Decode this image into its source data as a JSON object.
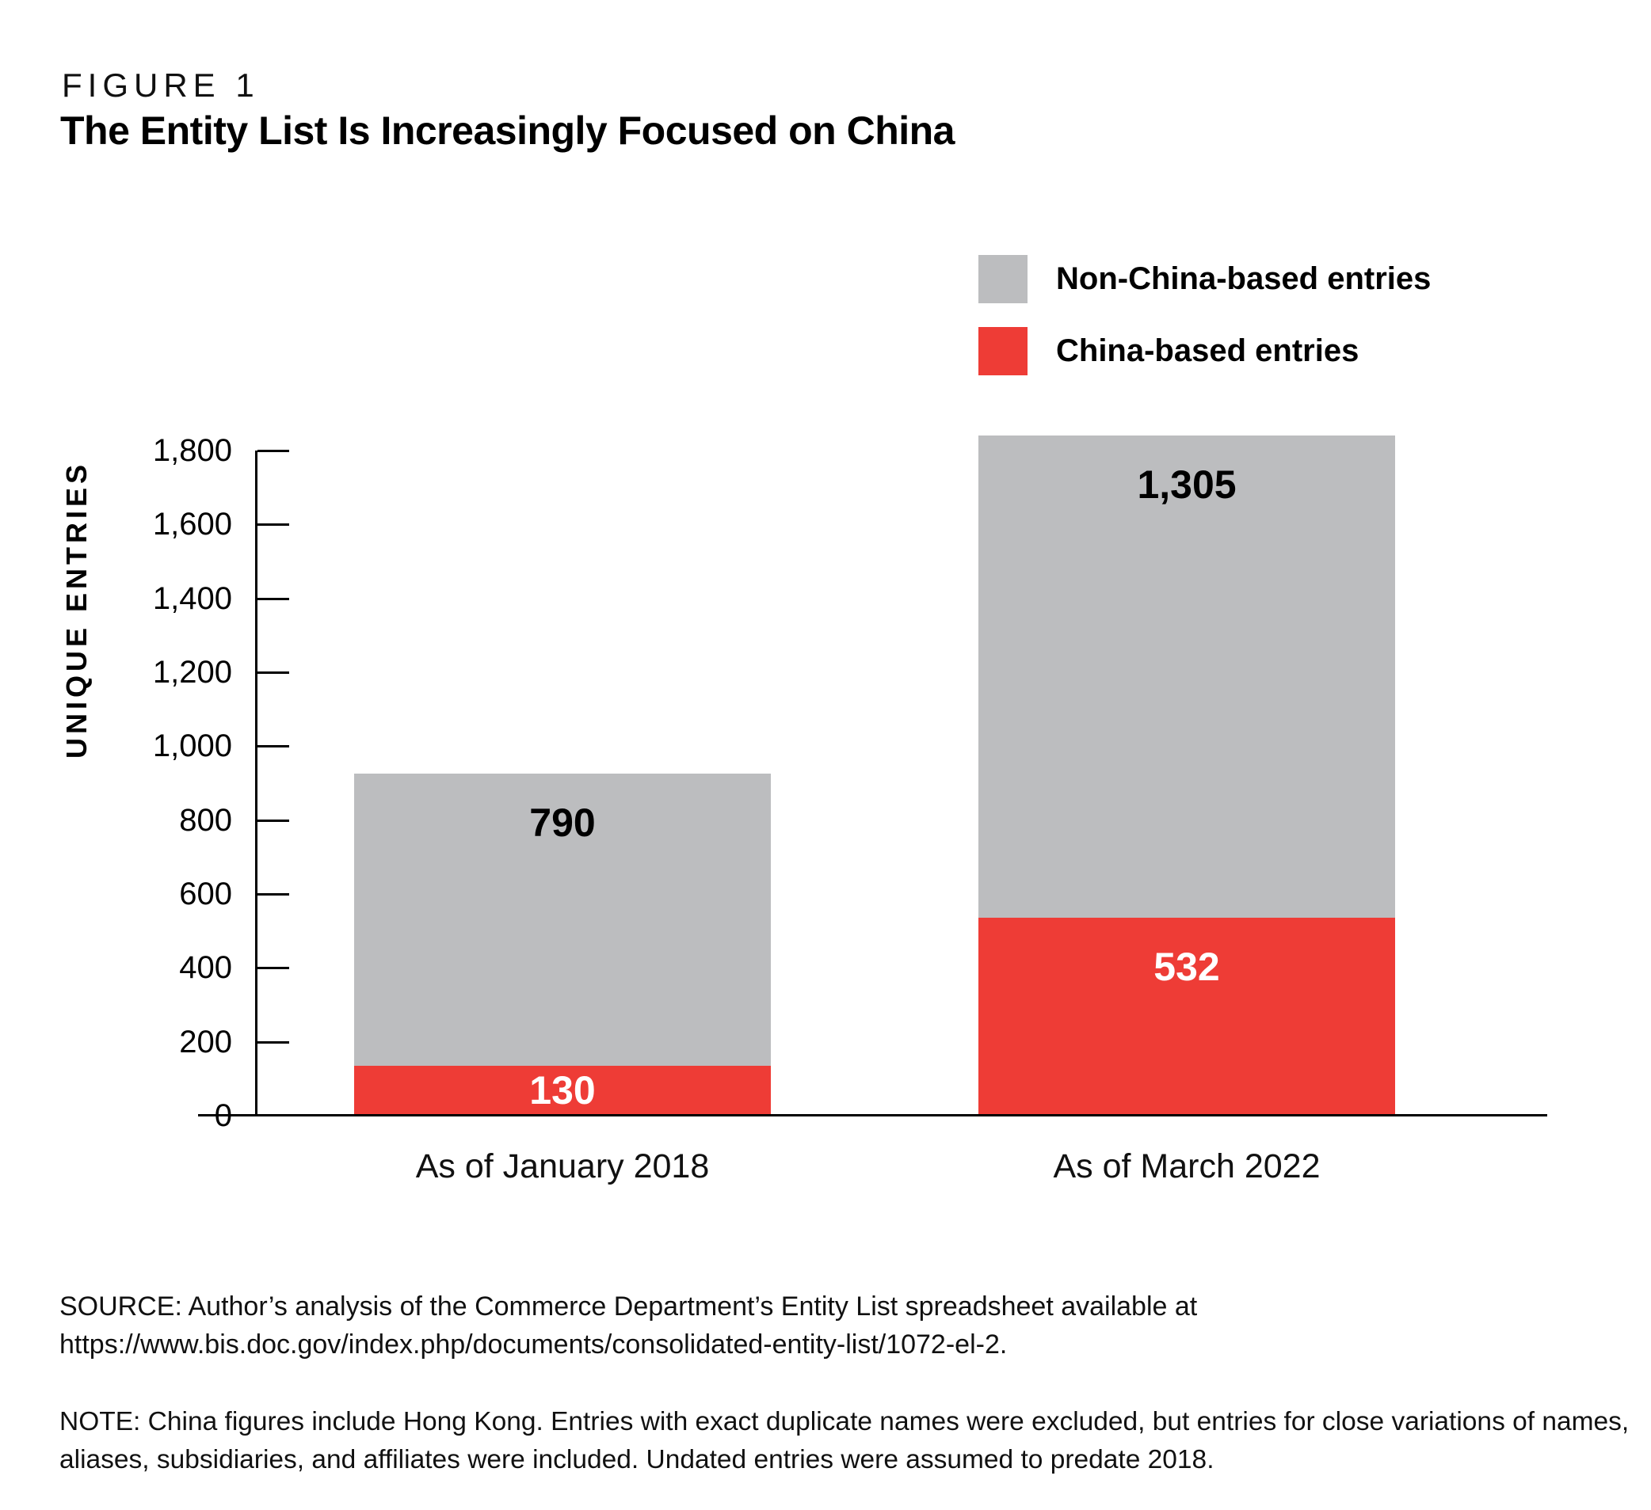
{
  "figure_label": "FIGURE 1",
  "title": "The Entity List Is Increasingly Focused on China",
  "legend": {
    "items": [
      {
        "label": "Non-China-based entries",
        "color": "#bcbdbf"
      },
      {
        "label": "China-based entries",
        "color": "#ee3c36"
      }
    ]
  },
  "chart_data": {
    "type": "bar",
    "stacked": true,
    "categories": [
      "As of January 2018",
      "As of March 2022"
    ],
    "series": [
      {
        "name": "China-based entries",
        "color": "#ee3c36",
        "label_color": "#ffffff",
        "values": [
          130,
          532
        ]
      },
      {
        "name": "Non-China-based entries",
        "color": "#bcbdbf",
        "label_color": "#000000",
        "values": [
          790,
          1305
        ]
      }
    ],
    "totals": [
      920,
      1837
    ],
    "title": "The Entity List Is Increasingly Focused on China",
    "xlabel": "",
    "ylabel": "UNIQUE ENTRIES",
    "ylim": [
      0,
      1800
    ],
    "ytick_step": 200,
    "yticks": [
      0,
      200,
      400,
      600,
      800,
      1000,
      1200,
      1400,
      1600,
      1800
    ],
    "grid": false,
    "legend_position": "top-right"
  },
  "source": "SOURCE: Author’s analysis of the Commerce Department’s Entity List spreadsheet available at https://www.bis.doc.gov/index.php/documents/consolidated-entity-list/1072-el-2.",
  "note": "NOTE: China figures include Hong Kong. Entries with exact duplicate names were excluded, but entries for close variations of names, aliases, subsidiaries, and affiliates were included. Undated entries were assumed to predate 2018."
}
